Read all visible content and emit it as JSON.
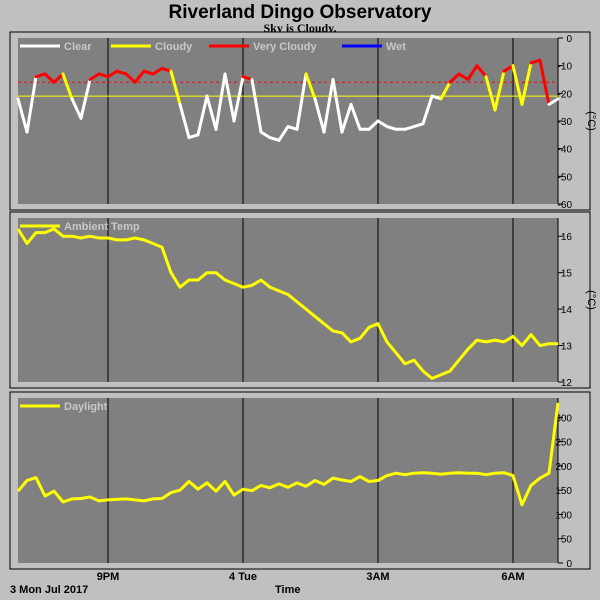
{
  "title": "Riverland Dingo Observatory",
  "subtitle": "Sky is Cloudy.",
  "xaxis": {
    "label": "Time",
    "date_label": "3 Mon Jul 2017",
    "ticks": [
      "9PM",
      "4 Tue",
      "3AM",
      "6AM"
    ],
    "hours_from_start": [
      2,
      5,
      8,
      11
    ]
  },
  "colors": {
    "clear": "#ffffff",
    "cloudy": "#ffff00",
    "very_cloudy": "#ff0000",
    "wet": "#0000ff",
    "ambient": "#ffff00",
    "daylight": "#ffff00",
    "plot_bg": "#808080",
    "grid": "#000000"
  },
  "chart_data": [
    {
      "name": "sky",
      "type": "line",
      "ylabel": "(°C)",
      "ylim": [
        -60,
        0
      ],
      "yticks": [
        0,
        -10,
        -20,
        -30,
        -40,
        -50,
        -60
      ],
      "legend": [
        {
          "label": "Clear",
          "color": "#ffffff"
        },
        {
          "label": "Cloudy",
          "color": "#ffff00"
        },
        {
          "label": "Very Cloudy",
          "color": "#ff0000"
        },
        {
          "label": "Wet",
          "color": "#0000ff"
        }
      ],
      "threshold_lines": [
        {
          "value": -16,
          "color": "#ff0000",
          "style": "dashed"
        },
        {
          "value": -21,
          "color": "#ffff00",
          "style": "solid"
        }
      ],
      "x_hours": [
        0,
        0.2,
        0.4,
        0.6,
        0.8,
        1.0,
        1.2,
        1.4,
        1.6,
        1.8,
        2.0,
        2.2,
        2.4,
        2.6,
        2.8,
        3.0,
        3.2,
        3.4,
        3.6,
        3.8,
        4.0,
        4.2,
        4.4,
        4.6,
        4.8,
        5.0,
        5.2,
        5.4,
        5.6,
        5.8,
        6.0,
        6.2,
        6.4,
        6.6,
        6.8,
        7.0,
        7.2,
        7.4,
        7.6,
        7.8,
        8.0,
        8.2,
        8.4,
        8.6,
        8.8,
        9.0,
        9.2,
        9.4,
        9.6,
        9.8,
        10.0,
        10.2,
        10.4,
        10.6,
        10.8,
        11.0,
        11.2,
        11.4,
        11.6,
        11.8,
        12.0
      ],
      "values": [
        -22,
        -34,
        -14,
        -13,
        -16,
        -13,
        -22,
        -29,
        -15,
        -13,
        -14,
        -12,
        -13,
        -16,
        -12,
        -13,
        -11,
        -12,
        -24,
        -36,
        -35,
        -21,
        -33,
        -13,
        -30,
        -14,
        -15,
        -34,
        -36,
        -37,
        -32,
        -33,
        -13,
        -22,
        -34,
        -15,
        -34,
        -24,
        -33,
        -33,
        -30,
        -32,
        -33,
        -33,
        -32,
        -31,
        -21,
        -22,
        -16,
        -13,
        -15,
        -10,
        -14,
        -26,
        -12,
        -10,
        -24,
        -9,
        -8,
        -24,
        -22
      ]
    },
    {
      "name": "ambient",
      "type": "line",
      "ylabel": "(°C)",
      "ylim": [
        12,
        16.5
      ],
      "yticks": [
        12,
        13,
        14,
        15,
        16
      ],
      "legend": [
        {
          "label": "Ambient Temp",
          "color": "#ffff00"
        }
      ],
      "x_hours": [
        0,
        0.2,
        0.4,
        0.6,
        0.8,
        1.0,
        1.2,
        1.4,
        1.6,
        1.8,
        2.0,
        2.2,
        2.4,
        2.6,
        2.8,
        3.0,
        3.2,
        3.4,
        3.6,
        3.8,
        4.0,
        4.2,
        4.4,
        4.6,
        4.8,
        5.0,
        5.2,
        5.4,
        5.6,
        5.8,
        6.0,
        6.2,
        6.4,
        6.6,
        6.8,
        7.0,
        7.2,
        7.4,
        7.6,
        7.8,
        8.0,
        8.2,
        8.4,
        8.6,
        8.8,
        9.0,
        9.2,
        9.4,
        9.6,
        9.8,
        10.0,
        10.2,
        10.4,
        10.6,
        10.8,
        11.0,
        11.2,
        11.4,
        11.6,
        11.8,
        12.0
      ],
      "values": [
        16.2,
        15.8,
        16.1,
        16.1,
        16.2,
        16.0,
        16.0,
        15.95,
        16.0,
        15.95,
        15.95,
        15.9,
        15.9,
        15.95,
        15.9,
        15.8,
        15.7,
        15.0,
        14.6,
        14.8,
        14.8,
        15.0,
        15.0,
        14.8,
        14.7,
        14.6,
        14.65,
        14.8,
        14.6,
        14.5,
        14.4,
        14.2,
        14.0,
        13.8,
        13.6,
        13.4,
        13.35,
        13.1,
        13.2,
        13.5,
        13.6,
        13.1,
        12.8,
        12.5,
        12.6,
        12.3,
        12.1,
        12.2,
        12.3,
        12.6,
        12.9,
        13.15,
        13.1,
        13.15,
        13.1,
        13.25,
        13.0,
        13.3,
        13.0,
        13.05,
        13.05
      ]
    },
    {
      "name": "daylight",
      "type": "line",
      "ylim": [
        0,
        340
      ],
      "yticks": [
        0,
        50,
        100,
        150,
        200,
        250,
        300
      ],
      "legend": [
        {
          "label": "Daylight",
          "color": "#ffff00"
        }
      ],
      "x_hours": [
        0,
        0.2,
        0.4,
        0.6,
        0.8,
        1.0,
        1.2,
        1.4,
        1.6,
        1.8,
        2.0,
        2.2,
        2.4,
        2.6,
        2.8,
        3.0,
        3.2,
        3.4,
        3.6,
        3.8,
        4.0,
        4.2,
        4.4,
        4.6,
        4.8,
        5.0,
        5.2,
        5.4,
        5.6,
        5.8,
        6.0,
        6.2,
        6.4,
        6.6,
        6.8,
        7.0,
        7.2,
        7.4,
        7.6,
        7.8,
        8.0,
        8.2,
        8.4,
        8.6,
        8.8,
        9.0,
        9.2,
        9.4,
        9.6,
        9.8,
        10.0,
        10.2,
        10.4,
        10.6,
        10.8,
        11.0,
        11.2,
        11.4,
        11.6,
        11.8,
        12.0
      ],
      "values": [
        148,
        170,
        176,
        138,
        148,
        126,
        132,
        133,
        136,
        128,
        130,
        131,
        132,
        130,
        128,
        132,
        133,
        145,
        150,
        168,
        152,
        165,
        148,
        168,
        140,
        152,
        149,
        160,
        155,
        163,
        156,
        165,
        158,
        170,
        162,
        175,
        171,
        168,
        178,
        168,
        170,
        180,
        185,
        182,
        185,
        186,
        185,
        183,
        185,
        186,
        185,
        185,
        182,
        185,
        186,
        180,
        120,
        160,
        175,
        185,
        330
      ]
    }
  ]
}
